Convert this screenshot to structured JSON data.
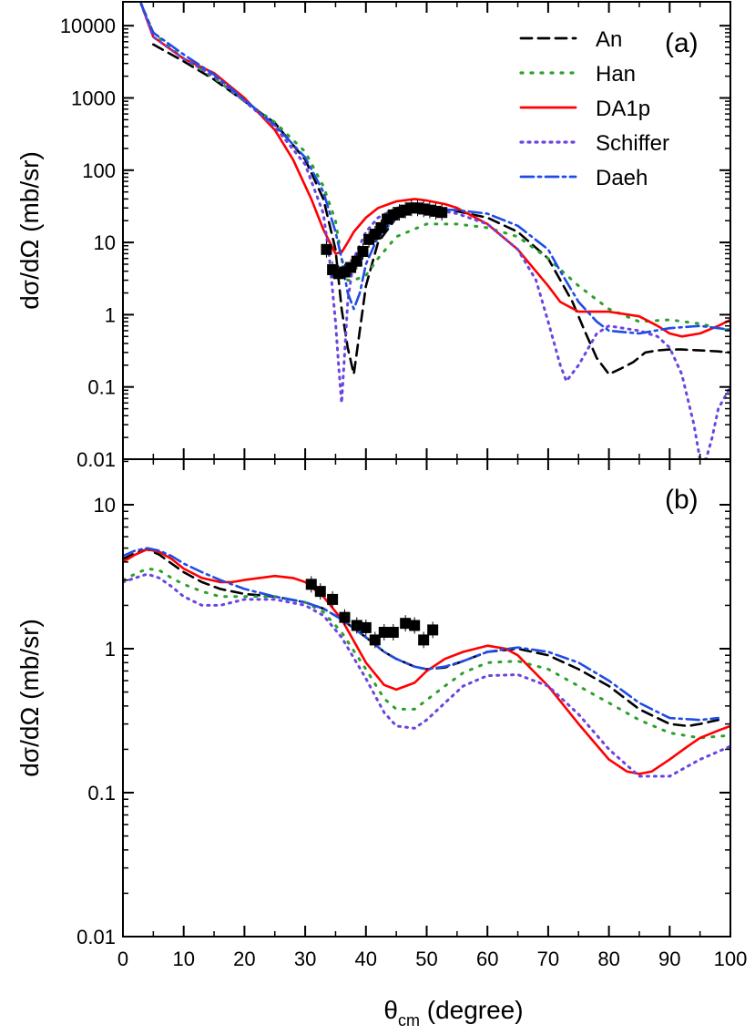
{
  "chart_data": [
    {
      "type": "line",
      "panel": "(a)",
      "ylabel": "dσ/dΩ (mb/sr)",
      "yscale": "log",
      "ylim": [
        0.01,
        20000
      ],
      "xlim": [
        0,
        100
      ],
      "y_tick_labels": [
        "0.01",
        "0.1",
        "1",
        "10",
        "100",
        "1000",
        "10000"
      ],
      "legend_position": "top-right",
      "series": [
        {
          "name": "An",
          "color": "#000000",
          "dash": "12,7",
          "x": [
            5,
            10,
            15,
            20,
            25,
            30,
            33,
            35,
            36,
            37,
            38,
            40,
            42,
            45,
            48,
            50,
            55,
            60,
            65,
            70,
            74,
            76,
            78,
            80,
            82,
            84,
            86,
            88,
            90,
            92,
            95,
            98,
            100
          ],
          "y": [
            5500,
            3200,
            1800,
            900,
            450,
            140,
            40,
            8,
            1.2,
            0.35,
            0.15,
            2.5,
            10,
            22,
            30,
            30,
            27,
            22,
            14,
            6,
            1.5,
            0.6,
            0.25,
            0.15,
            0.18,
            0.22,
            0.3,
            0.32,
            0.33,
            0.33,
            0.32,
            0.31,
            0.3
          ]
        },
        {
          "name": "Han",
          "color": "#2ca02c",
          "dash": "2,9",
          "x": [
            3,
            5,
            10,
            15,
            20,
            25,
            30,
            33,
            35,
            36,
            37,
            38,
            40,
            42,
            45,
            50,
            55,
            60,
            65,
            70,
            75,
            80,
            85,
            90,
            95,
            100
          ],
          "y": [
            20000,
            8000,
            3500,
            1900,
            900,
            460,
            180,
            60,
            20,
            6,
            3,
            3,
            3.5,
            6,
            12,
            18,
            18,
            16,
            12,
            6,
            2.5,
            1.2,
            0.8,
            0.85,
            0.75,
            0.6
          ]
        },
        {
          "name": "DA1p",
          "color": "#ff0000",
          "dash": "",
          "x": [
            3,
            5,
            10,
            15,
            20,
            25,
            28,
            31,
            33,
            35,
            36,
            37,
            38,
            40,
            42,
            45,
            48,
            50,
            53,
            55,
            60,
            65,
            70,
            72,
            75,
            78,
            80,
            85,
            88,
            90,
            92,
            95,
            98,
            100
          ],
          "y": [
            20000,
            7000,
            3500,
            2200,
            1000,
            360,
            140,
            40,
            15,
            7,
            7.3,
            10,
            14,
            22,
            30,
            37,
            40,
            38,
            34,
            30,
            18,
            8,
            2.5,
            1.5,
            1.1,
            1.1,
            1.1,
            0.95,
            0.7,
            0.55,
            0.5,
            0.55,
            0.7,
            0.85
          ]
        },
        {
          "name": "Schiffer",
          "color": "#6a45e0",
          "dash": "2,6",
          "x": [
            3,
            5,
            10,
            15,
            20,
            25,
            30,
            33,
            34,
            35,
            35.5,
            36,
            36.5,
            37,
            38,
            40,
            42,
            45,
            48,
            50,
            55,
            60,
            65,
            68,
            70,
            72,
            73,
            75,
            78,
            80,
            85,
            88,
            90,
            92,
            94,
            95,
            96,
            97,
            98,
            100
          ],
          "y": [
            20000,
            7000,
            3500,
            2000,
            900,
            400,
            120,
            25,
            6,
            0.8,
            0.2,
            0.06,
            0.3,
            1.5,
            6,
            14,
            22,
            30,
            32,
            30,
            25,
            18,
            8,
            3,
            0.8,
            0.2,
            0.12,
            0.2,
            0.55,
            0.7,
            0.6,
            0.5,
            0.35,
            0.15,
            0.03,
            0.01,
            0.01,
            0.02,
            0.05,
            0.1
          ]
        },
        {
          "name": "Daeh",
          "color": "#1f4ce6",
          "dash": "14,5,3,5",
          "x": [
            3,
            5,
            10,
            15,
            20,
            25,
            30,
            33,
            35,
            36,
            37,
            38,
            39,
            40,
            42,
            45,
            48,
            50,
            55,
            60,
            65,
            70,
            72,
            75,
            78,
            80,
            85,
            90,
            95,
            98,
            100
          ],
          "y": [
            20000,
            8000,
            4000,
            2100,
            950,
            420,
            150,
            50,
            14,
            6,
            2,
            1.2,
            2,
            5,
            12,
            22,
            28,
            29,
            28,
            25,
            17,
            8,
            4,
            1.5,
            0.8,
            0.6,
            0.55,
            0.65,
            0.7,
            0.65,
            0.62
          ]
        }
      ],
      "points": {
        "x": [
          33.5,
          34.5,
          35.5,
          36.5,
          37.5,
          38.5,
          39.5,
          40.5,
          41.5,
          42.5,
          43.5,
          44.5,
          45.5,
          46.5,
          47.5,
          48.5,
          49.5,
          50.5,
          51.5,
          52.5
        ],
        "y": [
          8,
          4.2,
          3.7,
          3.9,
          4.5,
          5.5,
          7.5,
          11,
          13,
          16,
          21,
          24,
          26,
          28,
          30,
          30,
          29,
          28,
          27,
          26
        ]
      }
    },
    {
      "type": "line",
      "panel": "(b)",
      "xlabel": "θcm (degree)",
      "ylabel": "dσ/dΩ (mb/sr)",
      "yscale": "log",
      "ylim": [
        0.01,
        20
      ],
      "xlim": [
        0,
        100
      ],
      "x_tick_labels": [
        "0",
        "10",
        "20",
        "30",
        "40",
        "50",
        "60",
        "70",
        "80",
        "90",
        "100"
      ],
      "y_tick_labels": [
        "0.01",
        "0.1",
        "1",
        "10"
      ],
      "series": [
        {
          "name": "An",
          "color": "#000000",
          "dash": "12,7",
          "x": [
            0,
            2,
            4,
            6,
            8,
            10,
            13,
            16,
            20,
            25,
            30,
            33,
            36,
            40,
            43,
            45,
            48,
            50,
            53,
            56,
            60,
            65,
            70,
            75,
            80,
            85,
            90,
            93,
            95,
            98
          ],
          "y": [
            4.2,
            4.6,
            4.9,
            4.5,
            3.9,
            3.4,
            2.9,
            2.6,
            2.4,
            2.3,
            2.1,
            1.9,
            1.6,
            1.2,
            0.95,
            0.85,
            0.75,
            0.72,
            0.74,
            0.82,
            0.95,
            1.0,
            0.9,
            0.72,
            0.55,
            0.38,
            0.3,
            0.29,
            0.3,
            0.32
          ]
        },
        {
          "name": "Han",
          "color": "#2ca02c",
          "dash": "2,9",
          "x": [
            0,
            2,
            4,
            6,
            8,
            10,
            13,
            16,
            20,
            25,
            30,
            33,
            36,
            40,
            43,
            45,
            48,
            50,
            53,
            56,
            60,
            65,
            70,
            75,
            80,
            85,
            90,
            95,
            100
          ],
          "y": [
            3.0,
            3.3,
            3.6,
            3.5,
            3.1,
            2.8,
            2.5,
            2.3,
            2.3,
            2.3,
            2.1,
            1.8,
            1.3,
            0.72,
            0.45,
            0.38,
            0.38,
            0.44,
            0.55,
            0.68,
            0.8,
            0.82,
            0.72,
            0.55,
            0.42,
            0.32,
            0.26,
            0.24,
            0.25
          ]
        },
        {
          "name": "DA1p",
          "color": "#ff0000",
          "dash": "",
          "x": [
            0,
            2,
            4,
            6,
            8,
            10,
            13,
            16,
            18,
            20,
            25,
            28,
            30,
            33,
            36,
            40,
            43,
            45,
            48,
            50,
            53,
            56,
            60,
            63,
            65,
            70,
            75,
            80,
            83,
            85,
            87,
            90,
            93,
            95,
            98,
            100
          ],
          "y": [
            4.0,
            4.5,
            4.9,
            4.7,
            4.2,
            3.6,
            3.1,
            2.9,
            2.9,
            3.0,
            3.2,
            3.1,
            2.9,
            2.3,
            1.6,
            0.8,
            0.56,
            0.52,
            0.58,
            0.7,
            0.85,
            0.95,
            1.05,
            1.0,
            0.9,
            0.55,
            0.3,
            0.17,
            0.14,
            0.135,
            0.14,
            0.17,
            0.21,
            0.24,
            0.27,
            0.29
          ]
        },
        {
          "name": "Schiffer",
          "color": "#6a45e0",
          "dash": "2,6",
          "x": [
            0,
            2,
            4,
            6,
            8,
            10,
            13,
            16,
            20,
            25,
            30,
            33,
            36,
            40,
            43,
            45,
            48,
            50,
            53,
            56,
            60,
            65,
            70,
            75,
            80,
            85,
            90,
            95,
            100
          ],
          "y": [
            2.9,
            3.1,
            3.3,
            3.1,
            2.7,
            2.3,
            2.0,
            2.0,
            2.2,
            2.2,
            2.0,
            1.7,
            1.2,
            0.62,
            0.36,
            0.29,
            0.28,
            0.32,
            0.42,
            0.55,
            0.65,
            0.66,
            0.55,
            0.35,
            0.2,
            0.13,
            0.13,
            0.17,
            0.21
          ]
        },
        {
          "name": "Daeh",
          "color": "#1f4ce6",
          "dash": "14,5,3,5",
          "x": [
            0,
            2,
            4,
            6,
            8,
            10,
            13,
            16,
            20,
            25,
            30,
            33,
            36,
            40,
            43,
            45,
            48,
            50,
            53,
            56,
            60,
            65,
            70,
            75,
            80,
            85,
            90,
            95,
            98
          ],
          "y": [
            4.4,
            4.8,
            5.0,
            4.8,
            4.4,
            3.9,
            3.4,
            3.0,
            2.6,
            2.3,
            2.1,
            1.9,
            1.6,
            1.2,
            0.95,
            0.85,
            0.75,
            0.72,
            0.75,
            0.82,
            0.95,
            1.02,
            0.95,
            0.8,
            0.6,
            0.42,
            0.33,
            0.32,
            0.33
          ]
        }
      ],
      "points": {
        "x": [
          31,
          32.5,
          34.5,
          36.5,
          38.5,
          40,
          41.5,
          43,
          44.5,
          46.5,
          48,
          49.5,
          51
        ],
        "y": [
          2.8,
          2.5,
          2.2,
          1.65,
          1.45,
          1.4,
          1.15,
          1.3,
          1.3,
          1.5,
          1.45,
          1.15,
          1.35
        ]
      }
    }
  ]
}
